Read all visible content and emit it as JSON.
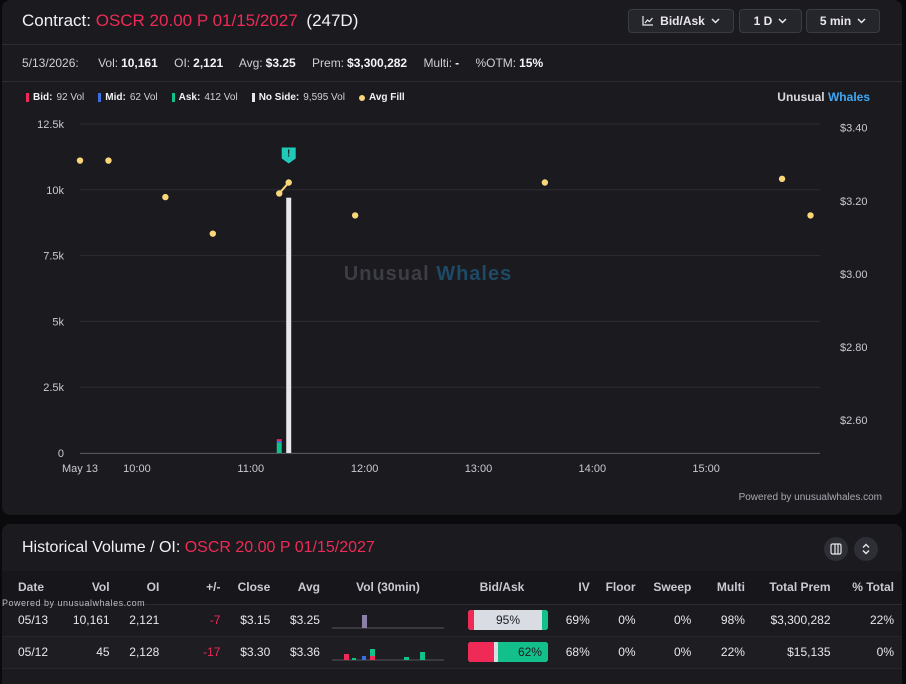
{
  "header": {
    "prefix": "Contract:",
    "contract": "OSCR 20.00 P 01/15/2027",
    "days": "(247D)",
    "dropdowns": {
      "chart_mode": "Bid/Ask",
      "range": "1 D",
      "interval": "5 min"
    }
  },
  "stats": {
    "date": "5/13/2026:",
    "vol_label": "Vol:",
    "vol": "10,161",
    "oi_label": "OI:",
    "oi": "2,121",
    "avg_label": "Avg:",
    "avg": "$3.25",
    "prem_label": "Prem:",
    "prem": "$3,300,282",
    "multi_label": "Multi:",
    "multi": "-",
    "otm_label": "%OTM:",
    "otm": "15%"
  },
  "legend": {
    "bid_label": "Bid:",
    "bid": "92 Vol",
    "mid_label": "Mid:",
    "mid": "62 Vol",
    "ask_label": "Ask:",
    "ask": "412 Vol",
    "noside_label": "No Side:",
    "noside": "9,595 Vol",
    "avgfill_label": "Avg Fill"
  },
  "brand": {
    "a": "Unusual",
    "b": "Whales"
  },
  "watermark": {
    "a": "Unusual",
    "b": "Whales"
  },
  "powered": "Powered by unusualwhales.com",
  "colors": {
    "bid": "#ef2a56",
    "mid": "#3b6fe0",
    "ask": "#13c08b",
    "noside": "#e8e8ec",
    "avgfill": "#f9d67a",
    "accent": "#3fa9f5"
  },
  "chart_data": {
    "type": "bar",
    "title": "",
    "x_ticks": [
      "May 13",
      "10:00",
      "11:00",
      "12:00",
      "13:00",
      "14:00",
      "15:00"
    ],
    "y_left_ticks": [
      "12.5k",
      "10k",
      "7.5k",
      "5k",
      "2.5k",
      "0"
    ],
    "y_right_ticks": [
      "$3.40",
      "$3.20",
      "$3.00",
      "$2.80",
      "$2.60"
    ],
    "ylim_volume": [
      0,
      12500
    ],
    "ylim_price": [
      2.51,
      3.41
    ],
    "grid": true,
    "volume_bars": [
      {
        "time": "11:15",
        "bid": 70,
        "mid": 55,
        "ask": 400,
        "noside": 0
      },
      {
        "time": "11:20",
        "bid": 0,
        "mid": 0,
        "ask": 0,
        "noside": 9700
      }
    ],
    "avg_fill": [
      {
        "time": "09:30",
        "price": 3.31
      },
      {
        "time": "09:45",
        "price": 3.31
      },
      {
        "time": "10:15",
        "price": 3.21
      },
      {
        "time": "10:40",
        "price": 3.11
      },
      {
        "time": "11:15",
        "price": 3.22
      },
      {
        "time": "11:20",
        "price": 3.25
      },
      {
        "time": "11:55",
        "price": 3.16
      },
      {
        "time": "13:35",
        "price": 3.25
      },
      {
        "time": "15:40",
        "price": 3.26
      },
      {
        "time": "15:55",
        "price": 3.16
      }
    ],
    "avg_fill_line": [
      "11:15",
      "11:20"
    ],
    "marker": {
      "time": "11:20",
      "label": "!"
    }
  },
  "historical": {
    "title": "Historical Volume / OI:",
    "contract": "OSCR 20.00 P 01/15/2027",
    "tiny_powered": "Powered by unusualwhales.com",
    "columns": [
      "Date",
      "Vol",
      "OI",
      "+/-",
      "Close",
      "Avg",
      "Vol (30min)",
      "Bid/Ask",
      "IV",
      "Floor",
      "Sweep",
      "Multi",
      "Total Prem",
      "% Total"
    ],
    "rows": [
      {
        "date": "05/13",
        "vol": "10,161",
        "oi": "2,121",
        "chg": "-7",
        "close": "$3.15",
        "avg": "$3.25",
        "ba": "95%",
        "bid_frac": 0.08,
        "ask_frac": 0.07,
        "iv": "69%",
        "floor": "0%",
        "sweep": "0%",
        "multi": "98%",
        "prem": "$3,300,282",
        "pct": "22%"
      },
      {
        "date": "05/12",
        "vol": "45",
        "oi": "2,128",
        "chg": "-17",
        "close": "$3.30",
        "avg": "$3.36",
        "ba": "62%",
        "bid_frac": 0.32,
        "ask_frac": 0.62,
        "iv": "68%",
        "floor": "0%",
        "sweep": "0%",
        "multi": "22%",
        "prem": "$15,135",
        "pct": "0%"
      }
    ]
  }
}
